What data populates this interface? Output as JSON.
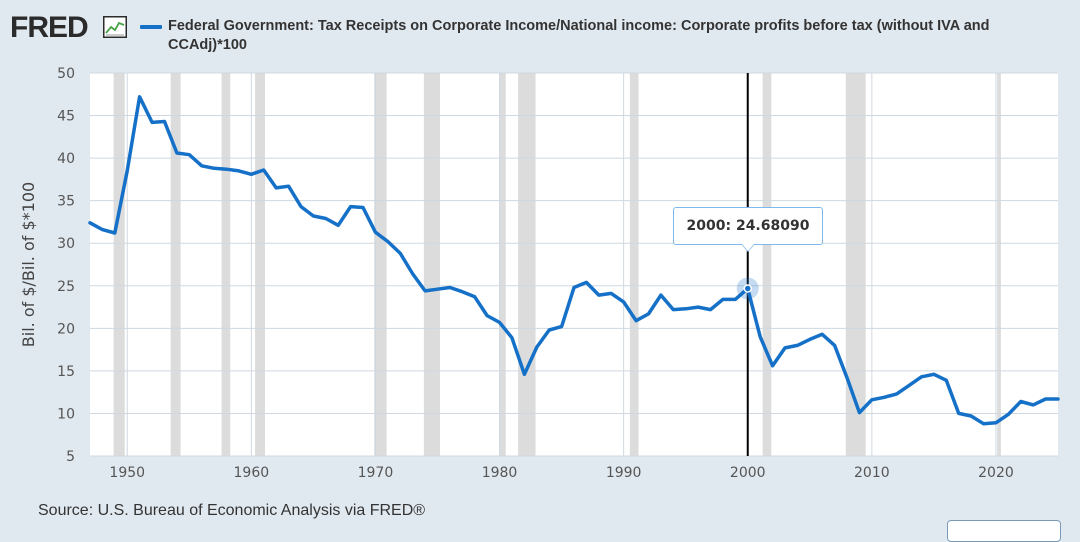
{
  "header": {
    "logo_text": "FRED",
    "logo_graph_icon": "line-chart-icon",
    "series_title": "Federal Government: Tax Receipts on Corporate Income/National income: Corporate profits before tax (without IVA and CCAdj)*100"
  },
  "source": "Source: U.S. Bureau of Economic Analysis via FRED®",
  "tooltip": {
    "text": "2000:  24.68090"
  },
  "colors": {
    "line": "#1570c7",
    "plot_background": "#ffffff",
    "page_background": "#e1e9f0",
    "recession": "#dcdcdc",
    "grid": "#cfd8e0",
    "cursor": "#000000"
  },
  "chart_data": {
    "type": "line",
    "title": "Federal Government: Tax Receipts on Corporate Income/National income: Corporate profits before tax (without IVA and CCAdj)*100",
    "xlabel": "",
    "ylabel": "Bil. of $/Bil. of $*100",
    "xlim": [
      1947,
      2025
    ],
    "ylim": [
      5,
      50
    ],
    "grid": true,
    "legend": "top-left",
    "x_ticks": [
      1950,
      1960,
      1970,
      1980,
      1990,
      2000,
      2010,
      2020
    ],
    "y_ticks": [
      5,
      10,
      15,
      20,
      25,
      30,
      35,
      40,
      45,
      50
    ],
    "highlight": {
      "x": 2000,
      "y": 24.6809
    },
    "recessions": [
      [
        1948.9,
        1949.8
      ],
      [
        1953.5,
        1954.3
      ],
      [
        1957.6,
        1958.3
      ],
      [
        1960.3,
        1961.1
      ],
      [
        1969.9,
        1970.9
      ],
      [
        1973.9,
        1975.2
      ],
      [
        1980.0,
        1980.5
      ],
      [
        1981.5,
        1982.9
      ],
      [
        1990.5,
        1991.2
      ],
      [
        2001.2,
        2001.9
      ],
      [
        2007.9,
        2009.5
      ],
      [
        2020.1,
        2020.4
      ]
    ],
    "series": [
      {
        "name": "Federal Government: Tax Receipts on Corporate Income/National income: Corporate profits before tax (without IVA and CCAdj)*100",
        "x": [
          1947,
          1948,
          1949,
          1950,
          1951,
          1952,
          1953,
          1954,
          1955,
          1956,
          1957,
          1958,
          1959,
          1960,
          1961,
          1962,
          1963,
          1964,
          1965,
          1966,
          1967,
          1968,
          1969,
          1970,
          1971,
          1972,
          1973,
          1974,
          1975,
          1976,
          1977,
          1978,
          1979,
          1980,
          1981,
          1982,
          1983,
          1984,
          1985,
          1986,
          1987,
          1988,
          1989,
          1990,
          1991,
          1992,
          1993,
          1994,
          1995,
          1996,
          1997,
          1998,
          1999,
          2000,
          2001,
          2002,
          2003,
          2004,
          2005,
          2006,
          2007,
          2008,
          2009,
          2010,
          2011,
          2012,
          2013,
          2014,
          2015,
          2016,
          2017,
          2018,
          2019,
          2020,
          2021,
          2022,
          2023,
          2024,
          2025
        ],
        "y": [
          32.4,
          31.6,
          31.2,
          38.5,
          47.2,
          44.2,
          44.3,
          40.6,
          40.4,
          39.1,
          38.8,
          38.7,
          38.5,
          38.1,
          38.6,
          36.5,
          36.7,
          34.3,
          33.2,
          32.9,
          32.1,
          34.3,
          34.2,
          31.3,
          30.2,
          28.8,
          26.4,
          24.4,
          24.6,
          24.8,
          24.3,
          23.7,
          21.5,
          20.7,
          18.9,
          14.6,
          17.8,
          19.8,
          20.2,
          24.8,
          25.4,
          23.9,
          24.1,
          23.1,
          20.9,
          21.7,
          23.9,
          22.2,
          22.3,
          22.5,
          22.2,
          23.4,
          23.4,
          24.6809,
          19.0,
          15.6,
          17.7,
          18.0,
          18.7,
          19.3,
          18.0,
          14.2,
          10.1,
          11.6,
          11.9,
          12.3,
          13.3,
          14.3,
          14.6,
          13.9,
          10.0,
          9.7,
          8.8,
          8.9,
          9.9,
          11.4,
          11.0,
          11.7,
          11.7
        ]
      }
    ]
  }
}
